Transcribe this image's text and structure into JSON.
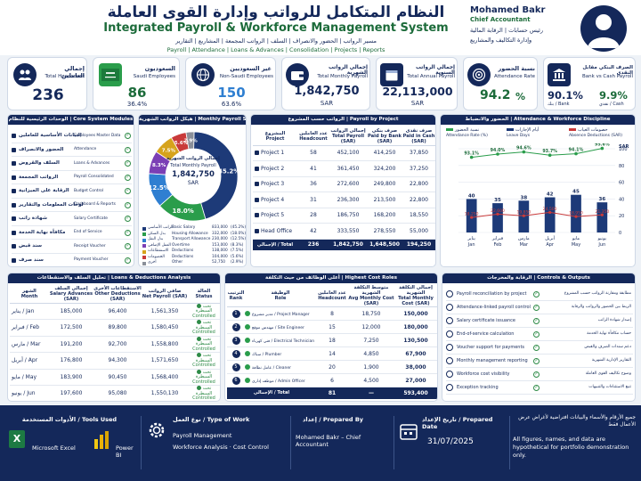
{
  "header": {
    "title_ar": "النظام المتكامل للرواتب وإدارة القوى العاملة",
    "title_en": "Integrated Payroll & Workforce Management System",
    "nav_ar": "مسير الرواتب | الحضور والانصراف | السلف | الرواتب المجمعة | المشاريع | التقارير",
    "nav_en": "Payroll | Attendance | Loans & Advances | Consolidation | Projects | Reports"
  },
  "profile": {
    "name": "Mohamed Bakr",
    "role": "Chief Accountant",
    "role_ar_1": "رئيس حسابات | الرقابة المالية",
    "role_ar_2": "وإدارة التكاليف والمشاريع"
  },
  "kpis": [
    {
      "ar": "إجمالي العاملين",
      "en": "Total Headcount",
      "value": "236",
      "sub": ""
    },
    {
      "ar": "السعوديون",
      "en": "Saudi Employees",
      "value": "86",
      "sub": "36.4%"
    },
    {
      "ar": "غير السعوديين",
      "en": "Non-Saudi Employees",
      "value": "150",
      "sub": "63.6%"
    },
    {
      "ar": "إجمالي الرواتب الشهرية",
      "en": "Total Monthly Payroll",
      "value": "1,842,750",
      "sub": "SAR"
    },
    {
      "ar": "إجمالي الرواتب السنوية",
      "en": "Total Annual Payroll",
      "value": "22,113,000",
      "sub": "SAR"
    },
    {
      "ar": "نسبة الحضور",
      "en": "Attendance Rate",
      "value": "94.2",
      "sub": "%"
    },
    {
      "ar": "الصرف البنكي مقابل النقدي",
      "en": "Bank vs Cash Payroll",
      "value": "90.1%",
      "value2": "9.9%",
      "sub": "بنك / Bank",
      "sub2": "نقدي / Cash"
    }
  ],
  "core_modules": {
    "title": "الوحدات الرئيسية للنظام | Core System Modules",
    "items": [
      {
        "ar": "البيانات الأساسية للعاملين",
        "en": "Employees Master Data"
      },
      {
        "ar": "الحضور والانصراف",
        "en": "Attendance"
      },
      {
        "ar": "السلف والقروض",
        "en": "Loans & Advances"
      },
      {
        "ar": "الرواتب المجمعة",
        "en": "Payroll Consolidated"
      },
      {
        "ar": "الرقابة على الميزانية",
        "en": "Budget Control"
      },
      {
        "ar": "لوحات المعلومات والتقارير",
        "en": "Dashboard & Reports"
      },
      {
        "ar": "شهادة راتب",
        "en": "Salary Certificate"
      },
      {
        "ar": "مكافأة نهاية الخدمة",
        "en": "End of Service"
      },
      {
        "ar": "سند قبض",
        "en": "Receipt Voucher"
      },
      {
        "ar": "سند صرف",
        "en": "Payment Voucher"
      }
    ]
  },
  "payroll_structure": {
    "title": "هيكل الرواتب الشهرية | Monthly Payroll Structure",
    "center_ar": "إجمالي الرواتب الشهرية",
    "center_en": "Total Monthly Payroll",
    "center_value": "1,842,750",
    "center_unit": "SAR",
    "slices": [
      {
        "ar": "الراتب الأساسي",
        "en": "Basic Salary",
        "value": "833,000",
        "pct": "(45.2%)",
        "pct_label": "45.2%",
        "color": "#1d3a78",
        "v": 45.2
      },
      {
        "ar": "بدل السكن",
        "en": "Housing Allowance",
        "value": "332,000",
        "pct": "(18.0%)",
        "pct_label": "18.0%",
        "color": "#2a9d4b",
        "v": 18.0
      },
      {
        "ar": "بدل النقل",
        "en": "Transport Allowance",
        "value": "230,000",
        "pct": "(12.5%)",
        "pct_label": "12.5%",
        "color": "#2f7fd1",
        "v": 12.5
      },
      {
        "ar": "العمل الإضافي",
        "en": "Overtime",
        "value": "153,000",
        "pct": "(8.3%)",
        "pct_label": "8.3%",
        "color": "#7b3fb5",
        "v": 8.3
      },
      {
        "ar": "الاستقطاعات",
        "en": "Deductions",
        "value": "138,000",
        "pct": "(7.5%)",
        "pct_label": "7.5%",
        "color": "#d6a31c",
        "v": 7.5
      },
      {
        "ar": "الخصومات",
        "en": "Deductions",
        "value": "104,000",
        "pct": "(5.6%)",
        "pct_label": "5.6%",
        "color": "#c93a3a",
        "v": 5.6
      },
      {
        "ar": "أخرى",
        "en": "Other",
        "value": "52,750",
        "pct": "(2.9%)",
        "pct_label": "2.9%",
        "color": "#8a8f99",
        "v": 2.9
      }
    ]
  },
  "payroll_by_project": {
    "title": "الرواتب حسب المشروع | Payroll by Project",
    "headers": [
      {
        "ar": "المشروع",
        "en": "Project"
      },
      {
        "ar": "عدد العاملين",
        "en": "Headcount"
      },
      {
        "ar": "إجمالي الرواتب",
        "en": "Total Payroll (SAR)"
      },
      {
        "ar": "صرف بنكي",
        "en": "Paid by Bank (SAR)"
      },
      {
        "ar": "صرف نقدي",
        "en": "Paid in Cash (SAR)"
      }
    ],
    "rows": [
      [
        "Project 1",
        "58",
        "452,100",
        "414,250",
        "37,850"
      ],
      [
        "Project 2",
        "41",
        "361,450",
        "324,200",
        "37,250"
      ],
      [
        "Project 3",
        "36",
        "272,600",
        "249,800",
        "22,800"
      ],
      [
        "Project 4",
        "31",
        "236,300",
        "213,500",
        "22,800"
      ],
      [
        "Project 5",
        "28",
        "186,750",
        "168,200",
        "18,550"
      ],
      [
        "Head Office",
        "42",
        "333,550",
        "278,550",
        "55,000"
      ]
    ],
    "total": [
      "الإجمالي / Total",
      "236",
      "1,842,750",
      "1,648,500",
      "194,250"
    ]
  },
  "attendance": {
    "title": "الحضور والانضباط | Attendance & Workforce Discipline",
    "legend": [
      {
        "ar": "نسبة الحضور",
        "en": "Attendance Rate (%)",
        "color": "#2a9d4b"
      },
      {
        "ar": "أيام الإجازات",
        "en": "Leave Days",
        "color": "#1d3a78"
      },
      {
        "ar": "خصومات الغياب",
        "en": "Absence Deductions (SAR)",
        "color": "#c93a3a"
      }
    ],
    "yunit": "SAR",
    "yticks": [
      "100",
      "80",
      "60",
      "40",
      "20",
      "0"
    ],
    "months": [
      {
        "ar": "يناير",
        "en": "Jan"
      },
      {
        "ar": "فبراير",
        "en": "Feb"
      },
      {
        "ar": "مارس",
        "en": "Mar"
      },
      {
        "ar": "أبريل",
        "en": "Apr"
      },
      {
        "ar": "مايو",
        "en": "May"
      },
      {
        "ar": "يونيو",
        "en": "Jun"
      }
    ]
  },
  "chart_data": {
    "type": "bar",
    "categories": [
      "Jan",
      "Feb",
      "Mar",
      "Apr",
      "May",
      "Jun"
    ],
    "series": [
      {
        "name": "Leave Days",
        "values": [
          40,
          35,
          38,
          42,
          45,
          36
        ]
      },
      {
        "name": "Absence Deductions (SAR)",
        "values": [
          18,
          22,
          20,
          24,
          19,
          21
        ],
        "labels": [
          "18,250",
          "22,600",
          "19,850",
          "24,500",
          "18,950",
          "21,350"
        ]
      },
      {
        "name": "Attendance Rate (%)",
        "values": [
          93.1,
          94.0,
          94.6,
          93.7,
          94.1,
          95.6
        ],
        "labels": [
          "93.1%",
          "94.0%",
          "94.6%",
          "93.7%",
          "94.1%",
          "95.6%"
        ]
      }
    ],
    "ylabel": "SAR",
    "ylim": [
      0,
      100
    ]
  },
  "loans": {
    "title": "تحليل السلف والاستقطاعات | Loans & Deductions Analysis",
    "headers": [
      {
        "ar": "الشهر",
        "en": "Month"
      },
      {
        "ar": "إجمالي السلف",
        "en": "Salary Advances (SAR)"
      },
      {
        "ar": "الاستقطاعات الأخرى",
        "en": "Other Deductions (SAR)"
      },
      {
        "ar": "صافي الرواتب",
        "en": "Net Payroll (SAR)"
      },
      {
        "ar": "الحالة",
        "en": "Status"
      }
    ],
    "rows": [
      [
        "يناير / Jan",
        "185,000",
        "96,400",
        "1,561,350"
      ],
      [
        "فبراير / Feb",
        "172,500",
        "89,800",
        "1,580,450"
      ],
      [
        "مارس / Mar",
        "191,200",
        "92,700",
        "1,558,800"
      ],
      [
        "أبريل / Apr",
        "176,800",
        "94,300",
        "1,571,650"
      ],
      [
        "مايو / May",
        "183,900",
        "90,450",
        "1,568,400"
      ],
      [
        "يونيو / Jun",
        "197,600",
        "95,080",
        "1,550,130"
      ]
    ],
    "status_ar": "تحت السيطرة",
    "status_en": "Controlled",
    "total": [
      "الإجمالي / Total",
      "1,107,000",
      "558,700",
      "9,390,800"
    ]
  },
  "top_cost": {
    "title": "أعلى الوظائف من حيث التكلفة | Highest Cost Roles",
    "headers": [
      {
        "ar": "الترتيب",
        "en": "Rank"
      },
      {
        "ar": "الوظيفة",
        "en": "Role"
      },
      {
        "ar": "عدد العاملين",
        "en": "Headcount"
      },
      {
        "ar": "متوسط التكلفة الشهرية",
        "en": "Avg Monthly Cost (SAR)"
      },
      {
        "ar": "إجمالي التكلفة الشهرية",
        "en": "Total Monthly Cost (SAR)"
      }
    ],
    "rows": [
      [
        "1",
        "مدير مشروع / Project Manager",
        "8",
        "18,750",
        "150,000"
      ],
      [
        "2",
        "مهندس موقع / Site Engineer",
        "15",
        "12,000",
        "180,000"
      ],
      [
        "3",
        "فني كهرباء / Electrical Technician",
        "18",
        "7,250",
        "130,500"
      ],
      [
        "4",
        "سباك / Plumber",
        "14",
        "4,850",
        "67,900"
      ],
      [
        "5",
        "عامل نظافة / Cleaner",
        "20",
        "1,900",
        "38,000"
      ],
      [
        "6",
        "موظف إداري / Admin Officer",
        "6",
        "4,500",
        "27,000"
      ]
    ],
    "total": [
      "الإجمالي / Total",
      "81",
      "—",
      "593,400"
    ]
  },
  "controls": {
    "title": "الرقابة والمخرجات | Controls & Outputs",
    "items": [
      {
        "en": "Payroll reconciliation by project",
        "ar": "مطابقة ومقارنة الرواتب حسب المشروع"
      },
      {
        "en": "Attendance-linked payroll control",
        "ar": "الربط بين الحضور والرواتب والرقابة"
      },
      {
        "en": "Salary certificate issuance",
        "ar": "إصدار شهادة الراتب"
      },
      {
        "en": "End-of-service calculation",
        "ar": "حساب مكافأة نهاية الخدمة"
      },
      {
        "en": "Voucher support for payments",
        "ar": "دعم سندات الصرف والقبض"
      },
      {
        "en": "Monthly management reporting",
        "ar": "التقارير الإدارية الشهرية"
      },
      {
        "en": "Workforce cost visibility",
        "ar": "وضوح تكاليف القوى العاملة"
      },
      {
        "en": "Exception tracking",
        "ar": "تتبع الاستثناءات والتنبيهات"
      }
    ]
  },
  "footer": {
    "tools_title": "الأدوات المستخدمة / Tools Used",
    "tool1": "Microsoft Excel",
    "tool2": "Power BI",
    "work_title": "نوع العمل / Type of Work",
    "work1": "Payroll Management",
    "work2": "Workforce Analysis · Cost Control",
    "prep_title": "إعداد / Prepared By",
    "prep_name": "Mohamed Bakr – Chief Accountant",
    "date_title": "تاريخ الإعداد / Prepared Date",
    "date": "31/07/2025",
    "disc_ar": "جميع الأرقام والأسماء والبيانات افتراضية لأغراض عرض الأعمال فقط",
    "disc_en": "All figures, names, and data are hypothetical for portfolio demonstration only."
  }
}
